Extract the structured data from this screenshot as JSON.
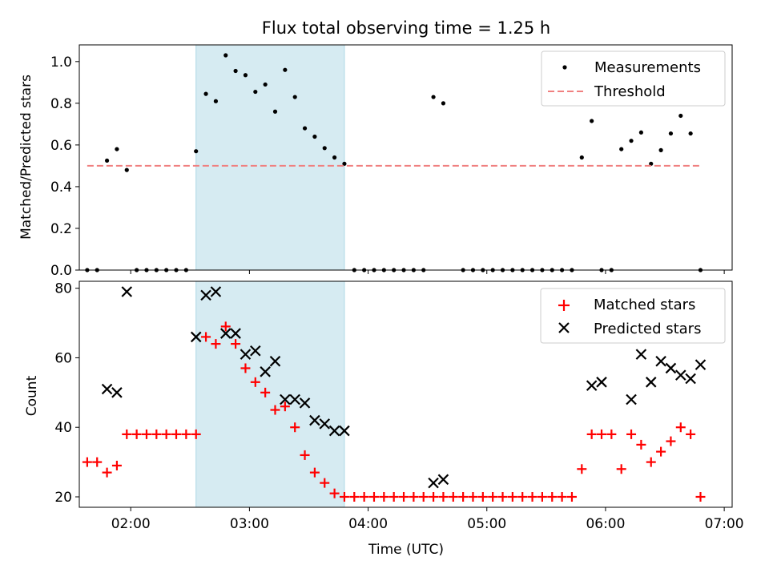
{
  "title": "Flux total observing time = 1.25 h",
  "colors": {
    "shade": "#add8e6",
    "measurement": "#000000",
    "threshold": "#f08080",
    "matched": "#ff0000",
    "predicted": "#000000"
  },
  "chart_data": [
    {
      "type": "scatter",
      "ylabel": "Matched/Predicted stars",
      "ylim": [
        0,
        1.08
      ],
      "xlim_time": [
        "01:34",
        "07:04"
      ],
      "yticks": [
        "0.0",
        "0.2",
        "0.4",
        "0.6",
        "0.8",
        "1.0"
      ],
      "shaded_interval": [
        "02:33",
        "03:48"
      ],
      "legend_position": "top-right",
      "series": [
        {
          "name": "Measurements",
          "kind": "points",
          "x": [
            "01:38",
            "01:43",
            "01:48",
            "01:53",
            "01:58",
            "02:03",
            "02:08",
            "02:13",
            "02:18",
            "02:23",
            "02:28",
            "02:33",
            "02:38",
            "02:43",
            "02:48",
            "02:53",
            "02:58",
            "03:03",
            "03:08",
            "03:13",
            "03:18",
            "03:23",
            "03:28",
            "03:33",
            "03:38",
            "03:43",
            "03:48",
            "03:53",
            "03:58",
            "04:03",
            "04:08",
            "04:13",
            "04:18",
            "04:23",
            "04:28",
            "04:33",
            "04:38",
            "04:48",
            "04:53",
            "04:58",
            "05:03",
            "05:08",
            "05:13",
            "05:18",
            "05:23",
            "05:28",
            "05:33",
            "05:38",
            "05:43",
            "05:48",
            "05:53",
            "05:58",
            "06:03",
            "06:08",
            "06:13",
            "06:18",
            "06:23",
            "06:28",
            "06:33",
            "06:38",
            "06:43",
            "06:48"
          ],
          "y": [
            0.0,
            0.0,
            0.525,
            0.58,
            0.48,
            0.0,
            0.0,
            0.0,
            0.0,
            0.0,
            0.0,
            0.57,
            0.845,
            0.81,
            1.03,
            0.955,
            0.935,
            0.855,
            0.89,
            0.76,
            0.96,
            0.83,
            0.68,
            0.64,
            0.585,
            0.54,
            0.51,
            0.0,
            0.0,
            0.0,
            0.0,
            0.0,
            0.0,
            0.0,
            0.0,
            0.83,
            0.8,
            0.0,
            0.0,
            0.0,
            0.0,
            0.0,
            0.0,
            0.0,
            0.0,
            0.0,
            0.0,
            0.0,
            0.0,
            0.54,
            0.715,
            0.0,
            0.0,
            0.58,
            0.62,
            0.66,
            0.51,
            0.575,
            0.655,
            0.74,
            0.655,
            0.0
          ]
        },
        {
          "name": "Threshold",
          "kind": "dashed-line",
          "x": [
            "01:38",
            "06:48"
          ],
          "y": [
            0.5,
            0.5
          ]
        }
      ]
    },
    {
      "type": "scatter",
      "xlabel": "Time (UTC)",
      "ylabel": "Count",
      "ylim": [
        17,
        82
      ],
      "xlim_time": [
        "01:34",
        "07:04"
      ],
      "yticks": [
        "20",
        "40",
        "60",
        "80"
      ],
      "xticks": [
        "02:00",
        "03:00",
        "04:00",
        "05:00",
        "06:00",
        "07:00"
      ],
      "shaded_interval": [
        "02:33",
        "03:48"
      ],
      "legend_position": "top-right",
      "series": [
        {
          "name": "Matched stars",
          "kind": "plus",
          "x": [
            "01:38",
            "01:43",
            "01:48",
            "01:53",
            "01:58",
            "02:03",
            "02:08",
            "02:13",
            "02:18",
            "02:23",
            "02:28",
            "02:33",
            "02:38",
            "02:43",
            "02:48",
            "02:53",
            "02:58",
            "03:03",
            "03:08",
            "03:13",
            "03:18",
            "03:23",
            "03:28",
            "03:33",
            "03:38",
            "03:43",
            "03:48",
            "03:53",
            "03:58",
            "04:03",
            "04:08",
            "04:13",
            "04:18",
            "04:23",
            "04:28",
            "04:33",
            "04:38",
            "04:43",
            "04:48",
            "04:53",
            "04:58",
            "05:03",
            "05:08",
            "05:13",
            "05:18",
            "05:23",
            "05:28",
            "05:33",
            "05:38",
            "05:43",
            "05:48",
            "05:53",
            "05:58",
            "06:03",
            "06:08",
            "06:13",
            "06:18",
            "06:23",
            "06:28",
            "06:33",
            "06:38",
            "06:43",
            "06:48"
          ],
          "y": [
            30,
            30,
            27,
            29,
            38,
            38,
            38,
            38,
            38,
            38,
            38,
            38,
            66,
            64,
            69,
            64,
            57,
            53,
            50,
            45,
            46,
            40,
            32,
            27,
            24,
            21,
            20,
            20,
            20,
            20,
            20,
            20,
            20,
            20,
            20,
            20,
            20,
            20,
            20,
            20,
            20,
            20,
            20,
            20,
            20,
            20,
            20,
            20,
            20,
            20,
            28,
            38,
            38,
            38,
            28,
            38,
            35,
            30,
            33,
            36,
            40,
            38,
            20
          ]
        },
        {
          "name": "Predicted stars",
          "kind": "cross",
          "x": [
            "01:48",
            "01:53",
            "01:58",
            "02:33",
            "02:38",
            "02:43",
            "02:48",
            "02:53",
            "02:58",
            "03:03",
            "03:08",
            "03:13",
            "03:18",
            "03:23",
            "03:28",
            "03:33",
            "03:38",
            "03:43",
            "03:48",
            "04:33",
            "04:38",
            "05:53",
            "05:58",
            "06:13",
            "06:18",
            "06:23",
            "06:28",
            "06:33",
            "06:38",
            "06:43",
            "06:48"
          ],
          "y": [
            51,
            50,
            79,
            66,
            78,
            79,
            67,
            67,
            61,
            62,
            56,
            59,
            48,
            48,
            47,
            42,
            41,
            39,
            39,
            24,
            25,
            52,
            53,
            48,
            61,
            53,
            59,
            57,
            55,
            54,
            58
          ]
        }
      ]
    }
  ]
}
